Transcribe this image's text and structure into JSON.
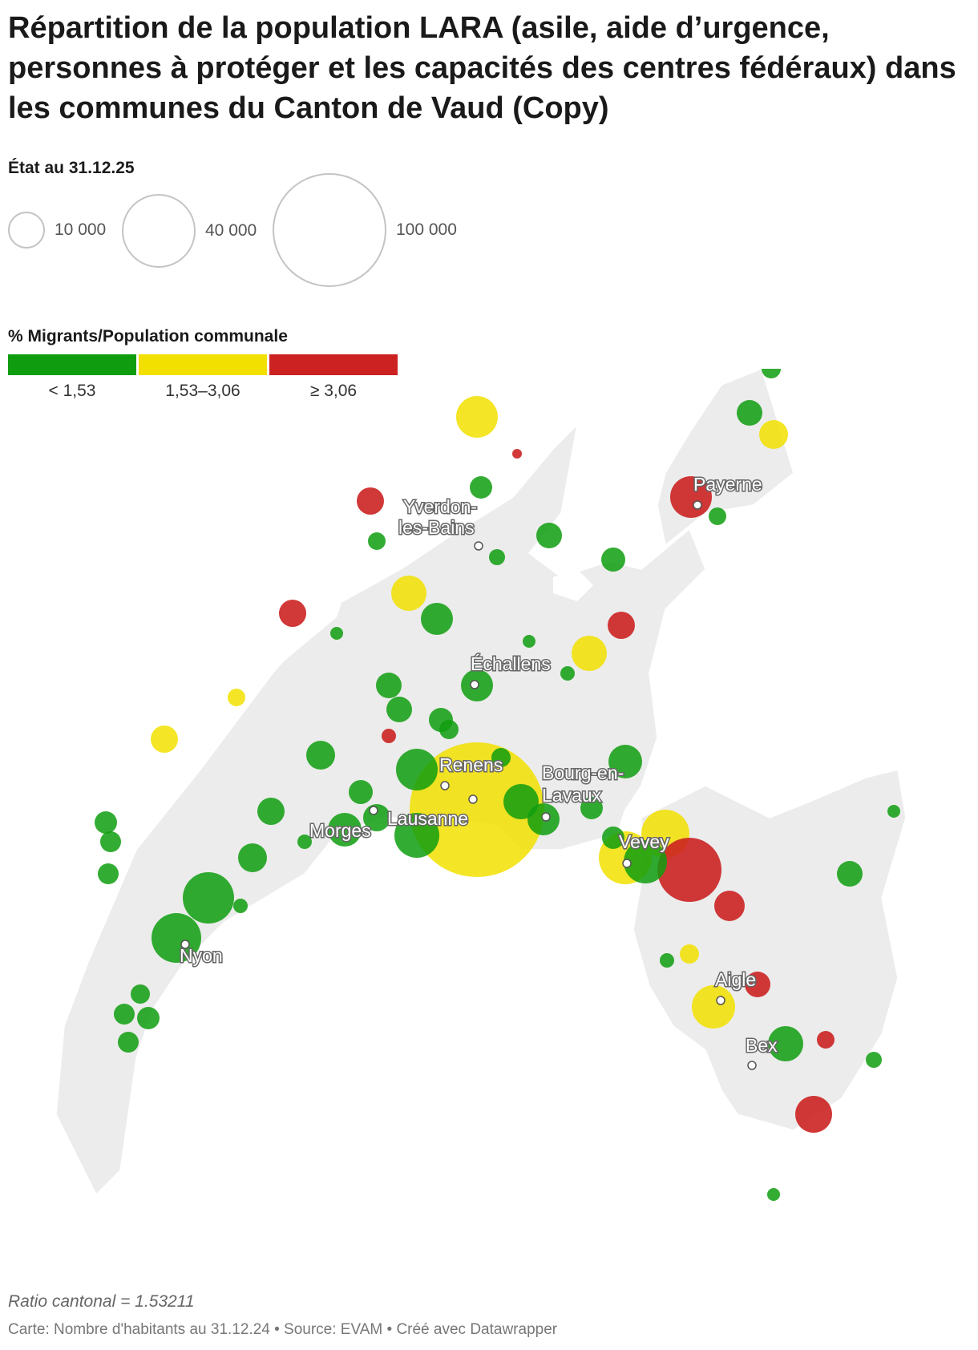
{
  "header": {
    "title": "Répartition de la population LARA (asile, aide d’urgence, personnes à protéger et les capacités des centres fédéraux) dans les communes du Canton de Vaud (Copy)",
    "subtitle": "État au 31.12.25"
  },
  "size_legend": [
    {
      "label": "10 000",
      "population": 10000
    },
    {
      "label": "40 000",
      "population": 40000
    },
    {
      "label": "100 000",
      "population": 100000
    }
  ],
  "color_legend": {
    "title": "% Migrants/Population communale",
    "bins": [
      {
        "label": "< 1,53",
        "color": "#0f9d0f"
      },
      {
        "label": "1,53–3,06",
        "color": "#f2e000"
      },
      {
        "label": "≥ 3,06",
        "color": "#cc2222"
      }
    ]
  },
  "map": {
    "cities": [
      "Yverdon-les-Bains",
      "Payerne",
      "Échallens",
      "Renens",
      "Bourg-en-Lavaux",
      "Lausanne",
      "Morges",
      "Vevey",
      "Nyon",
      "Aigle",
      "Bex"
    ]
  },
  "footer": {
    "ratio": "Ratio cantonal = 1.53211",
    "source": "Carte: Nombre d'habitants au 31.12.24 • Source: EVAM • Créé avec Datawrapper"
  }
}
